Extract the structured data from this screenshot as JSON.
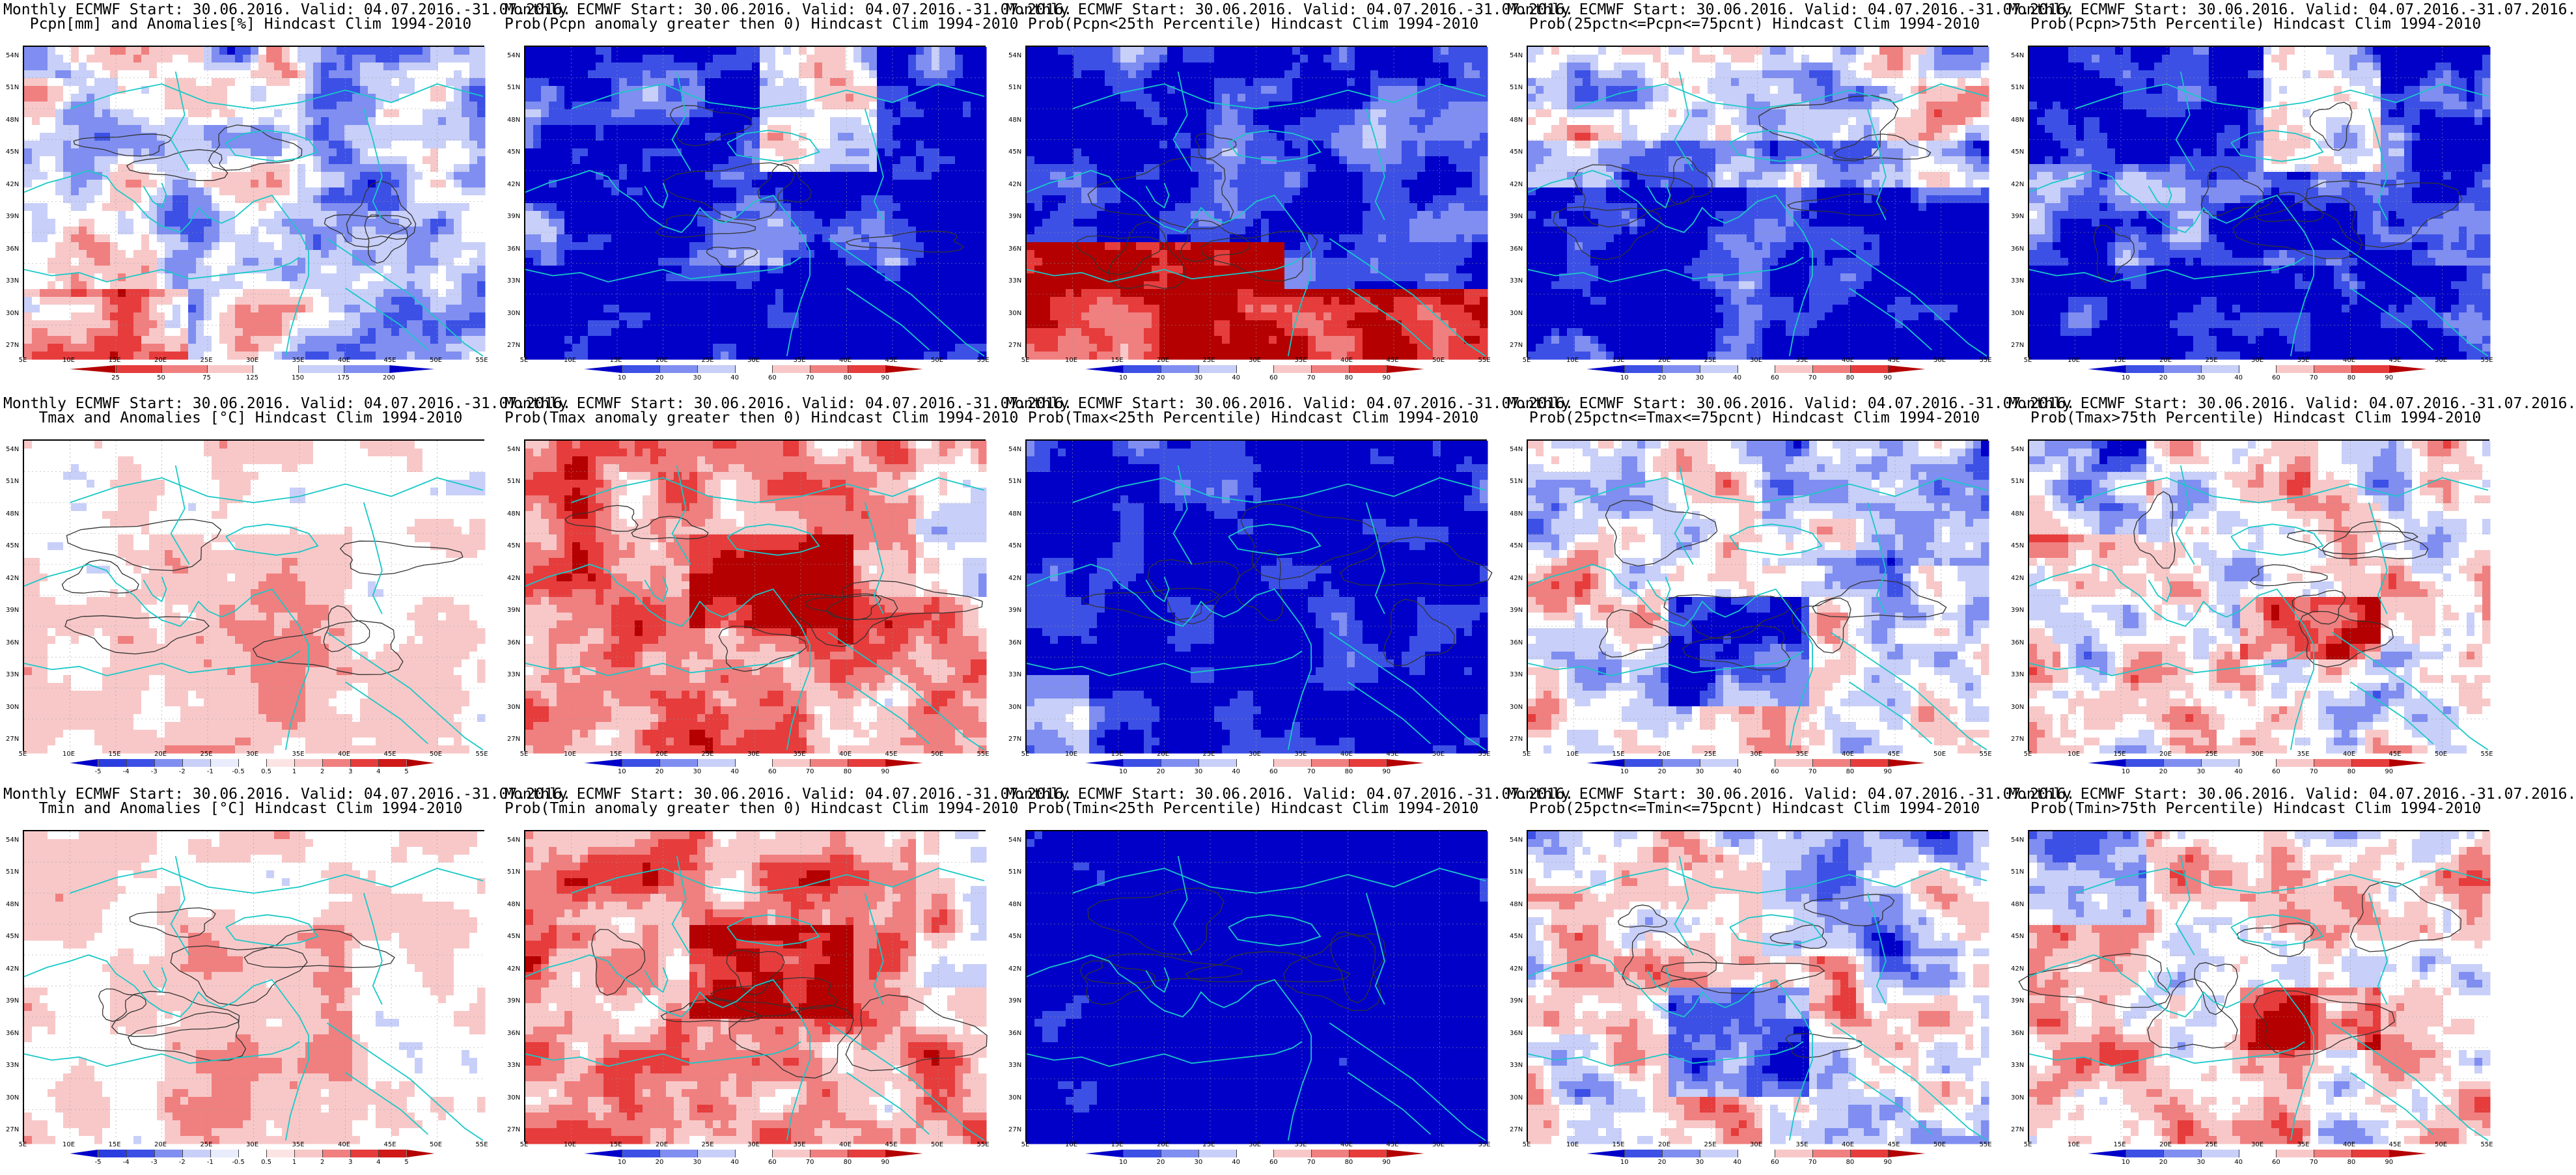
{
  "figure": {
    "rows": [
      {
        "variable": "Pcpn",
        "panels": [
          {
            "title1": "Monthly ECMWF Start: 30.06.2016. Valid: 04.07.2016.-31.07.2016.",
            "title2": "Pcpn[mm] and Anomalies[%] Hindcast Clim 1994-2010",
            "field": "anomaly_pct",
            "cbar": "anom_pct",
            "colorbar_labels": [
              "25",
              "50",
              "75",
              "125",
              "150",
              "175",
              "200"
            ]
          },
          {
            "title1": "Monthly ECMWF Start: 30.06.2016. Valid: 04.07.2016.-31.07.2016.",
            "title2": "Prob(Pcpn anomaly greater then 0) Hindcast Clim 1994-2010",
            "field": "prob_low",
            "cbar": "prob",
            "colorbar_labels": [
              "10",
              "20",
              "30",
              "40",
              "60",
              "70",
              "80",
              "90"
            ]
          },
          {
            "title1": "Monthly ECMWF Start: 30.06.2016. Valid: 04.07.2016.-31.07.2016.",
            "title2": "Prob(Pcpn<25th Percentile) Hindcast Clim 1994-2010",
            "field": "prob_dry_south",
            "cbar": "prob",
            "colorbar_labels": [
              "10",
              "20",
              "30",
              "40",
              "60",
              "70",
              "80",
              "90"
            ]
          },
          {
            "title1": "Monthly ECMWF Start: 30.06.2016. Valid: 04.07.2016.-31.07.2016.",
            "title2": "Prob(25pctn<=Pcpn<=75pcnt) Hindcast Clim 1994-2010",
            "field": "prob_mid",
            "cbar": "prob",
            "colorbar_labels": [
              "10",
              "20",
              "30",
              "40",
              "60",
              "70",
              "80",
              "90"
            ]
          },
          {
            "title1": "Monthly ECMWF Start: 30.06.2016. Valid: 04.07.2016.-31.07.2016.",
            "title2": "Prob(Pcpn>75th Percentile) Hindcast Clim 1994-2010",
            "field": "prob_low",
            "cbar": "prob",
            "colorbar_labels": [
              "10",
              "20",
              "30",
              "40",
              "60",
              "70",
              "80",
              "90"
            ]
          }
        ]
      },
      {
        "variable": "Tmax",
        "panels": [
          {
            "title1": "Monthly ECMWF Start: 30.06.2016. Valid: 04.07.2016.-31.07.2016.",
            "title2": "Tmax and Anomalies [°C] Hindcast Clim 1994-2010",
            "field": "anom_temp",
            "cbar": "anom_temp",
            "colorbar_labels": [
              "-5",
              "-4",
              "-3",
              "-2",
              "-1",
              "-0.5",
              "0.5",
              "1",
              "2",
              "3",
              "4",
              "5"
            ]
          },
          {
            "title1": "Monthly ECMWF Start: 30.06.2016. Valid: 04.07.2016.-31.07.2016.",
            "title2": "Prob(Tmax anomaly greater then 0) Hindcast Clim 1994-2010",
            "field": "prob_hot",
            "cbar": "prob",
            "colorbar_labels": [
              "10",
              "20",
              "30",
              "40",
              "60",
              "70",
              "80",
              "90"
            ]
          },
          {
            "title1": "Monthly ECMWF Start: 30.06.2016. Valid: 04.07.2016.-31.07.2016.",
            "title2": "Prob(Tmax<25th Percentile) Hindcast Clim 1994-2010",
            "field": "prob_cold",
            "cbar": "prob",
            "colorbar_labels": [
              "10",
              "20",
              "30",
              "40",
              "60",
              "70",
              "80",
              "90"
            ]
          },
          {
            "title1": "Monthly ECMWF Start: 30.06.2016. Valid: 04.07.2016.-31.07.2016.",
            "title2": "Prob(25pctn<=Tmax<=75pcnt) Hindcast Clim 1994-2010",
            "field": "prob_mid_t",
            "cbar": "prob",
            "colorbar_labels": [
              "10",
              "20",
              "30",
              "40",
              "60",
              "70",
              "80",
              "90"
            ]
          },
          {
            "title1": "Monthly ECMWF Start: 30.06.2016. Valid: 04.07.2016.-31.07.2016.",
            "title2": "Prob(Tmax>75th Percentile) Hindcast Clim 1994-2010",
            "field": "prob_upper",
            "cbar": "prob",
            "colorbar_labels": [
              "10",
              "20",
              "30",
              "40",
              "60",
              "70",
              "80",
              "90"
            ]
          }
        ]
      },
      {
        "variable": "Tmin",
        "panels": [
          {
            "title1": "Monthly ECMWF Start: 30.06.2016. Valid: 04.07.2016.-31.07.2016.",
            "title2": "Tmin and Anomalies [°C] Hindcast Clim 1994-2010",
            "field": "anom_temp",
            "cbar": "anom_temp",
            "colorbar_labels": [
              "-5",
              "-4",
              "-3",
              "-2",
              "-1",
              "-0.5",
              "0.5",
              "1",
              "2",
              "3",
              "4",
              "5"
            ]
          },
          {
            "title1": "Monthly ECMWF Start: 30.06.2016. Valid: 04.07.2016.-31.07.2016.",
            "title2": "Prob(Tmin anomaly greater then 0) Hindcast Clim 1994-2010",
            "field": "prob_hot",
            "cbar": "prob",
            "colorbar_labels": [
              "10",
              "20",
              "30",
              "40",
              "60",
              "70",
              "80",
              "90"
            ]
          },
          {
            "title1": "Monthly ECMWF Start: 30.06.2016. Valid: 04.07.2016.-31.07.2016.",
            "title2": "Prob(Tmin<25th Percentile) Hindcast Clim 1994-2010",
            "field": "prob_cold_deep",
            "cbar": "prob",
            "colorbar_labels": [
              "10",
              "20",
              "30",
              "40",
              "60",
              "70",
              "80",
              "90"
            ]
          },
          {
            "title1": "Monthly ECMWF Start: 30.06.2016. Valid: 04.07.2016.-31.07.2016.",
            "title2": "Prob(25pctn<=Tmin<=75pcnt) Hindcast Clim 1994-2010",
            "field": "prob_mid_t",
            "cbar": "prob",
            "colorbar_labels": [
              "10",
              "20",
              "30",
              "40",
              "60",
              "70",
              "80",
              "90"
            ]
          },
          {
            "title1": "Monthly ECMWF Start: 30.06.2016. Valid: 04.07.2016.-31.07.2016.",
            "title2": "Prob(Tmin>75th Percentile) Hindcast Clim 1994-2010",
            "field": "prob_upper",
            "cbar": "prob",
            "colorbar_labels": [
              "10",
              "20",
              "30",
              "40",
              "60",
              "70",
              "80",
              "90"
            ]
          }
        ]
      }
    ],
    "lat_labels": [
      "54N",
      "51N",
      "48N",
      "45N",
      "42N",
      "39N",
      "36N",
      "33N",
      "30N",
      "27N"
    ],
    "lon_labels": [
      "5E",
      "10E",
      "15E",
      "20E",
      "25E",
      "30E",
      "35E",
      "40E",
      "45E",
      "50E",
      "55E"
    ],
    "colors": {
      "deep_blue": "#0000c8",
      "blue": "#3c50e6",
      "mid_blue": "#7f8ef0",
      "light_blue": "#c8cff8",
      "neutral": "#ffffff",
      "light_red": "#f8c8c8",
      "mid_red": "#f07f7f",
      "red": "#e63c3c",
      "deep_red": "#b40000",
      "coast": "#19c8c8",
      "contour": "#333333"
    }
  }
}
